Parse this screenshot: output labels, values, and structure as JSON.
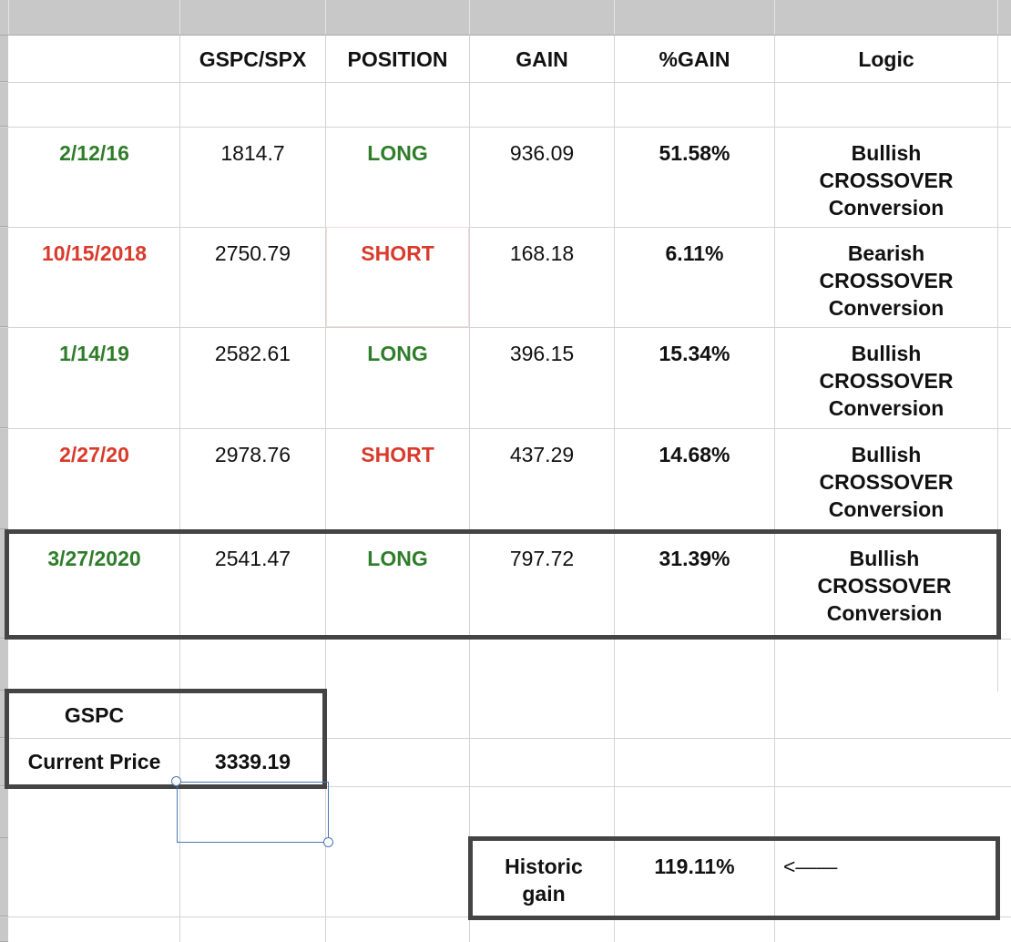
{
  "header": {
    "col_b": "GSPC/SPX",
    "col_c": "POSITION",
    "col_d": "GAIN",
    "col_e": "%GAIN",
    "col_f": "Logic"
  },
  "trades": [
    {
      "date": "2/12/16",
      "price": "1814.7",
      "position": "LONG",
      "gain": "936.09",
      "pct_gain": "51.58%",
      "logic": "Bullish\nCROSSOVER\nConversion",
      "position_color": "#2f7d2a"
    },
    {
      "date": "10/15/2018",
      "price": "2750.79",
      "position": "SHORT",
      "gain": "168.18",
      "pct_gain": "6.11%",
      "logic": "Bearish\nCROSSOVER\nConversion",
      "position_color": "#d93a2b"
    },
    {
      "date": "1/14/19",
      "price": "2582.61",
      "position": "LONG",
      "gain": "396.15",
      "pct_gain": "15.34%",
      "logic": "Bullish\nCROSSOVER\nConversion",
      "position_color": "#2f7d2a"
    },
    {
      "date": "2/27/20",
      "price": "2978.76",
      "position": "SHORT",
      "gain": "437.29",
      "pct_gain": "14.68%",
      "logic": "Bullish\nCROSSOVER\nConversion",
      "position_color": "#d93a2b"
    },
    {
      "date": "3/27/2020",
      "price": "2541.47",
      "position": "LONG",
      "gain": "797.72",
      "pct_gain": "31.39%",
      "logic": "Bullish\nCROSSOVER\nConversion",
      "position_color": "#2f7d2a"
    }
  ],
  "current": {
    "ticker": "GSPC",
    "label": "Current Price",
    "value": "3339.19"
  },
  "historic": {
    "label": "Historic\ngain",
    "value": "119.11%",
    "arrow": "<——"
  }
}
